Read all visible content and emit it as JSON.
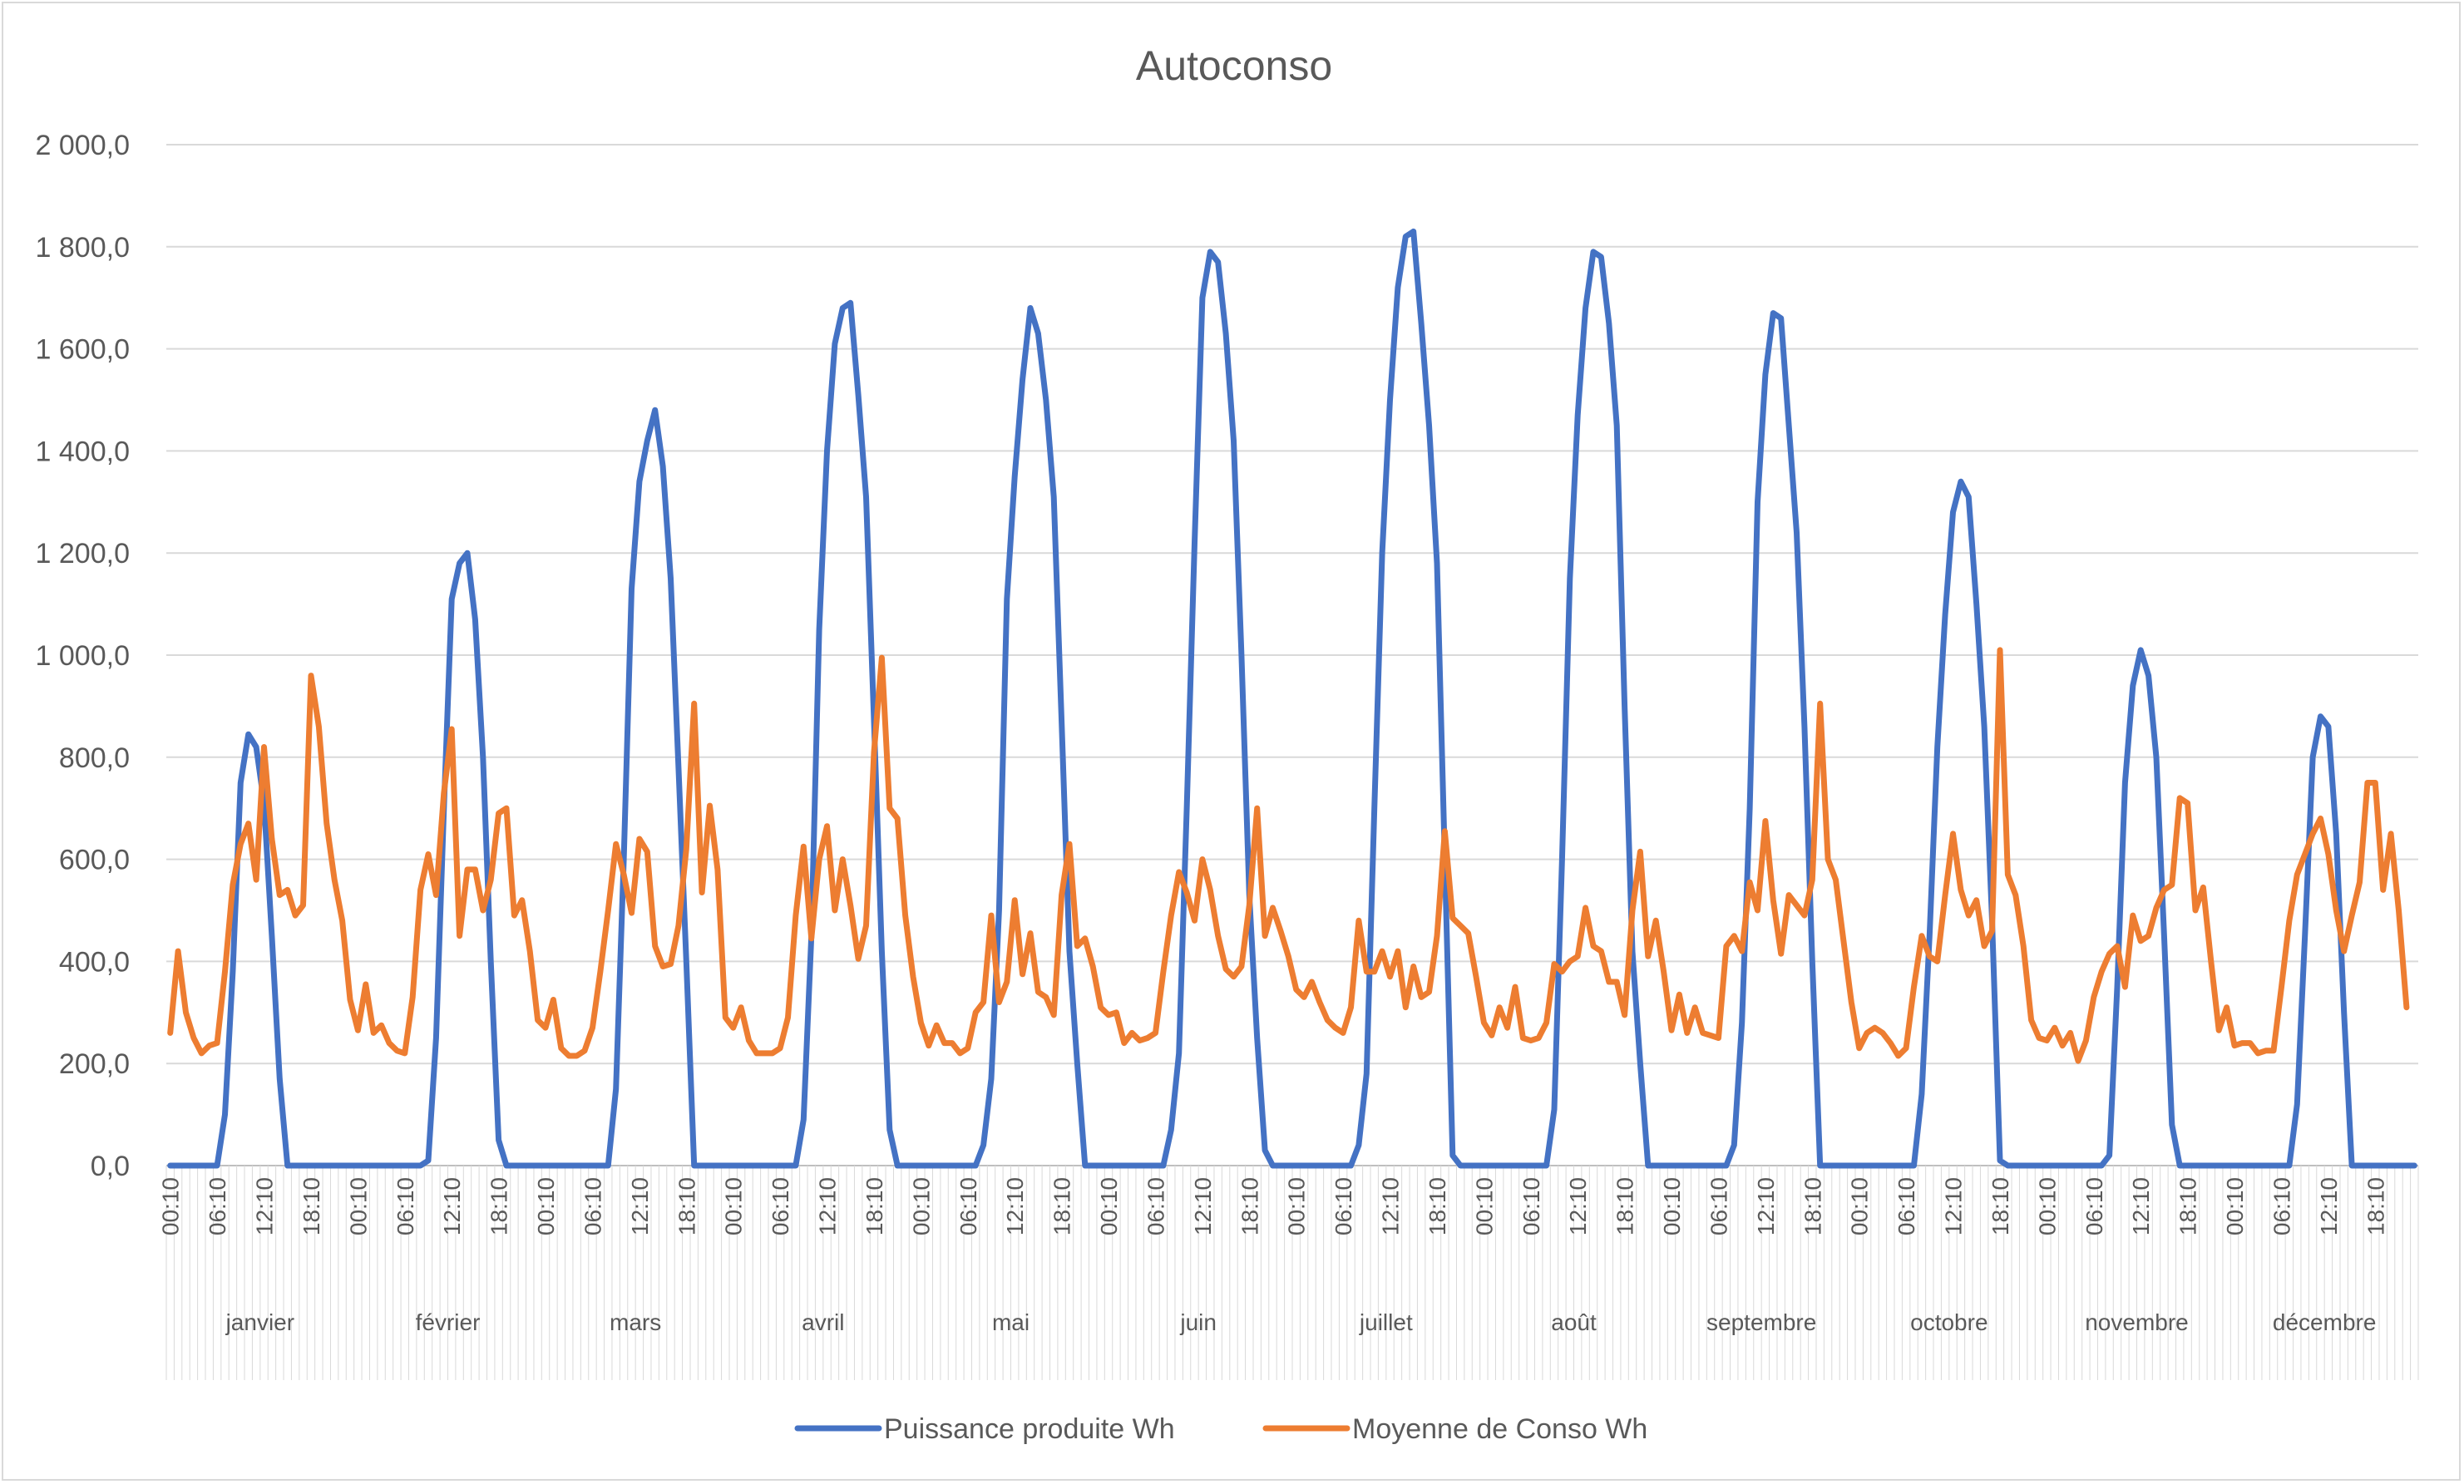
{
  "chart_data": {
    "type": "line",
    "title": "Autoconso",
    "xlabel": "",
    "ylabel": "",
    "ylim": [
      0,
      2000
    ],
    "y_ticks": [
      "0,0",
      "200,0",
      "400,0",
      "600,0",
      "800,0",
      "1 000,0",
      "1 200,0",
      "1 400,0",
      "1 600,0",
      "1 800,0",
      "2 000,0"
    ],
    "y_tick_values": [
      0,
      200,
      400,
      600,
      800,
      1000,
      1200,
      1400,
      1600,
      1800,
      2000
    ],
    "grid": true,
    "legend_position": "bottom",
    "time_labels": [
      "00:10",
      "06:10",
      "12:10",
      "18:10"
    ],
    "month_labels": [
      "janvier",
      "février",
      "mars",
      "avril",
      "mai",
      "juin",
      "juillet",
      "août",
      "septembre",
      "octobre",
      "novembre",
      "décembre"
    ],
    "points_per_month": 24,
    "series": [
      {
        "name": "Puissance produite Wh",
        "color": "#4472C4",
        "values": [
          0,
          0,
          0,
          0,
          0,
          0,
          0,
          100,
          380,
          750,
          845,
          820,
          710,
          450,
          170,
          0,
          0,
          0,
          0,
          0,
          0,
          0,
          0,
          0,
          0,
          0,
          0,
          0,
          0,
          0,
          0,
          0,
          0,
          10,
          250,
          700,
          1110,
          1180,
          1200,
          1070,
          800,
          400,
          50,
          0,
          0,
          0,
          0,
          0,
          0,
          0,
          0,
          0,
          0,
          0,
          0,
          0,
          0,
          150,
          600,
          1130,
          1340,
          1420,
          1480,
          1370,
          1150,
          780,
          400,
          0,
          0,
          0,
          0,
          0,
          0,
          0,
          0,
          0,
          0,
          0,
          0,
          0,
          0,
          90,
          450,
          1050,
          1400,
          1610,
          1680,
          1690,
          1510,
          1310,
          870,
          420,
          70,
          0,
          0,
          0,
          0,
          0,
          0,
          0,
          0,
          0,
          0,
          0,
          40,
          170,
          500,
          1110,
          1350,
          1540,
          1680,
          1630,
          1500,
          1310,
          870,
          420,
          200,
          0,
          0,
          0,
          0,
          0,
          0,
          0,
          0,
          0,
          0,
          0,
          70,
          220,
          700,
          1220,
          1700,
          1790,
          1770,
          1630,
          1420,
          1000,
          530,
          250,
          30,
          0,
          0,
          0,
          0,
          0,
          0,
          0,
          0,
          0,
          0,
          0,
          40,
          180,
          700,
          1200,
          1500,
          1720,
          1820,
          1830,
          1650,
          1450,
          1180,
          600,
          20,
          0,
          0,
          0,
          0,
          0,
          0,
          0,
          0,
          0,
          0,
          0,
          0,
          110,
          600,
          1150,
          1470,
          1680,
          1790,
          1780,
          1650,
          1450,
          900,
          420,
          200,
          0,
          0,
          0,
          0,
          0,
          0,
          0,
          0,
          0,
          0,
          0,
          40,
          280,
          700,
          1300,
          1550,
          1670,
          1660,
          1450,
          1240,
          860,
          400,
          0,
          0,
          0,
          0,
          0,
          0,
          0,
          0,
          0,
          0,
          0,
          0,
          0,
          140,
          450,
          820,
          1080,
          1280,
          1340,
          1310,
          1100,
          860,
          480,
          10,
          0,
          0,
          0,
          0,
          0,
          0,
          0,
          0,
          0,
          0,
          0,
          0,
          0,
          20,
          350,
          750,
          940,
          1010,
          960,
          800,
          450,
          80,
          0,
          0,
          0,
          0,
          0,
          0,
          0,
          0,
          0,
          0,
          0,
          0,
          0,
          0,
          0,
          120,
          450,
          800,
          880,
          860,
          650,
          300,
          0,
          0,
          0,
          0,
          0,
          0,
          0,
          0,
          0
        ]
      },
      {
        "name": "Moyenne de Conso  Wh",
        "color": "#ED7D31",
        "values": [
          260,
          420,
          300,
          250,
          220,
          235,
          240,
          380,
          550,
          630,
          670,
          560,
          820,
          640,
          530,
          540,
          490,
          510,
          960,
          860,
          670,
          560,
          480,
          325,
          265,
          355,
          260,
          275,
          240,
          225,
          220,
          330,
          540,
          610,
          530,
          730,
          855,
          450,
          580,
          580,
          500,
          560,
          690,
          700,
          490,
          520,
          420,
          285,
          270,
          325,
          230,
          215,
          215,
          225,
          270,
          380,
          500,
          630,
          570,
          495,
          640,
          615,
          430,
          390,
          395,
          470,
          620,
          905,
          535,
          705,
          580,
          290,
          270,
          310,
          245,
          220,
          220,
          220,
          230,
          290,
          490,
          625,
          445,
          600,
          665,
          500,
          600,
          510,
          405,
          470,
          810,
          995,
          700,
          680,
          490,
          370,
          280,
          235,
          275,
          240,
          240,
          220,
          230,
          300,
          320,
          490,
          320,
          360,
          520,
          375,
          455,
          340,
          330,
          295,
          530,
          630,
          430,
          445,
          390,
          310,
          295,
          300,
          240,
          260,
          245,
          250,
          260,
          380,
          490,
          575,
          535,
          480,
          600,
          540,
          450,
          385,
          370,
          390,
          510,
          700,
          450,
          505,
          460,
          410,
          345,
          330,
          360,
          320,
          285,
          270,
          260,
          310,
          480,
          380,
          380,
          420,
          370,
          420,
          310,
          390,
          330,
          340,
          450,
          655,
          485,
          470,
          455,
          370,
          280,
          255,
          310,
          270,
          350,
          250,
          245,
          250,
          280,
          395,
          380,
          400,
          410,
          505,
          430,
          420,
          360,
          360,
          295,
          500,
          615,
          410,
          480,
          380,
          265,
          335,
          260,
          310,
          260,
          255,
          250,
          430,
          450,
          420,
          555,
          500,
          675,
          520,
          415,
          530,
          510,
          490,
          560,
          905,
          600,
          560,
          440,
          320,
          230,
          260,
          270,
          260,
          240,
          215,
          230,
          350,
          450,
          410,
          400,
          530,
          650,
          540,
          490,
          520,
          430,
          460,
          1010,
          570,
          530,
          430,
          285,
          250,
          245,
          270,
          235,
          260,
          205,
          245,
          330,
          380,
          415,
          430,
          350,
          490,
          440,
          450,
          505,
          540,
          550,
          720,
          710,
          500,
          545,
          400,
          265,
          310,
          235,
          240,
          240,
          220,
          225,
          225,
          350,
          480,
          570,
          610,
          650,
          680,
          610,
          500,
          420,
          490,
          555,
          750,
          750,
          540,
          650,
          500,
          310
        ]
      }
    ]
  }
}
